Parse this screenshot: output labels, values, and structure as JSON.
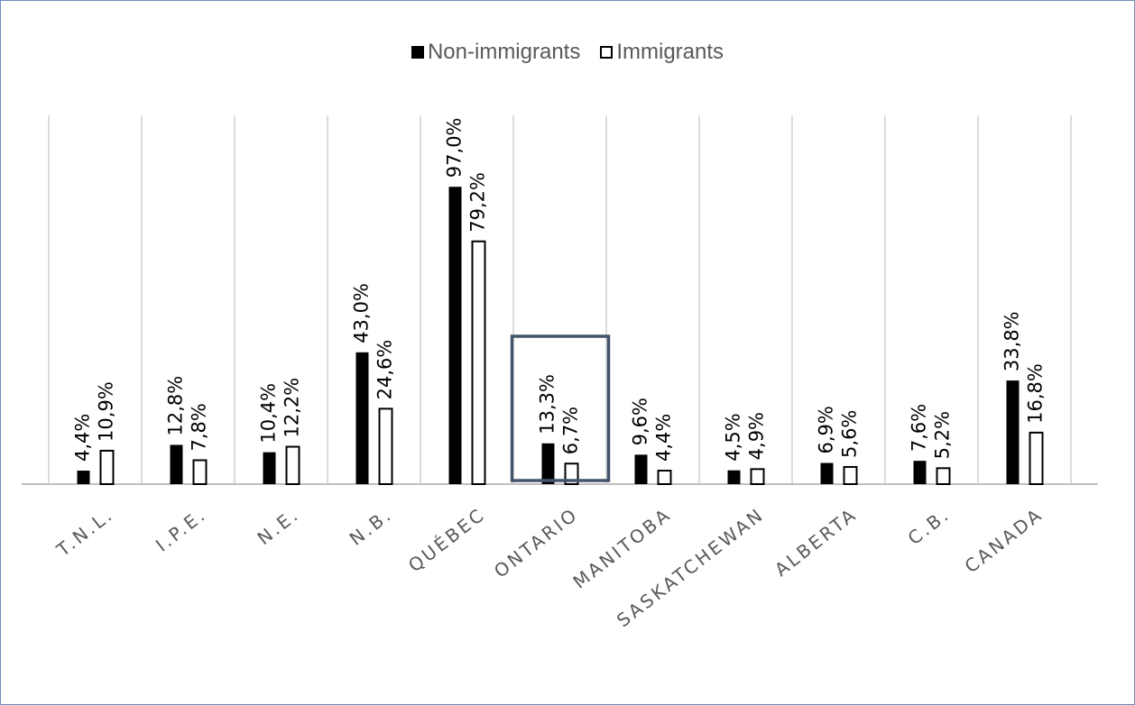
{
  "chart_data": {
    "type": "bar",
    "categories": [
      "T.N.L.",
      "I.P.E.",
      "N.E.",
      "N.B.",
      "QUÉBEC",
      "ONTARIO",
      "MANITOBA",
      "SASKATCHEWAN",
      "ALBERTA",
      "C.B.",
      "CANADA"
    ],
    "series": [
      {
        "name": "Non-immigrants",
        "values": [
          4.4,
          12.8,
          10.4,
          43.0,
          97.0,
          13.3,
          9.6,
          4.5,
          6.9,
          7.6,
          33.8
        ],
        "labels": [
          "4,4%",
          "12,8%",
          "10,4%",
          "43,0%",
          "97,0%",
          "13,3%",
          "9,6%",
          "4,5%",
          "6,9%",
          "7,6%",
          "33,8%"
        ],
        "fill": "#000000"
      },
      {
        "name": "Immigrants",
        "values": [
          10.9,
          7.8,
          12.2,
          24.6,
          79.2,
          6.7,
          4.4,
          4.9,
          5.6,
          5.2,
          16.8
        ],
        "labels": [
          "10,9%",
          "7,8%",
          "12,2%",
          "24,6%",
          "79,2%",
          "6,7%",
          "4,4%",
          "4,9%",
          "5,6%",
          "5,2%",
          "16,8%"
        ],
        "fill": "#ffffff"
      }
    ],
    "title": "",
    "xlabel": "",
    "ylabel": "",
    "ylim": [
      0,
      100
    ],
    "legend_position": "top-center",
    "highlighted_category": "ONTARIO",
    "highlight_color": "#44546a"
  },
  "colors": {
    "frame_border": "#6d8fbf",
    "gridline": "#d0d0d0",
    "axis": "#bfbfbf",
    "tick_label": "#595959",
    "data_label": "#000000"
  }
}
